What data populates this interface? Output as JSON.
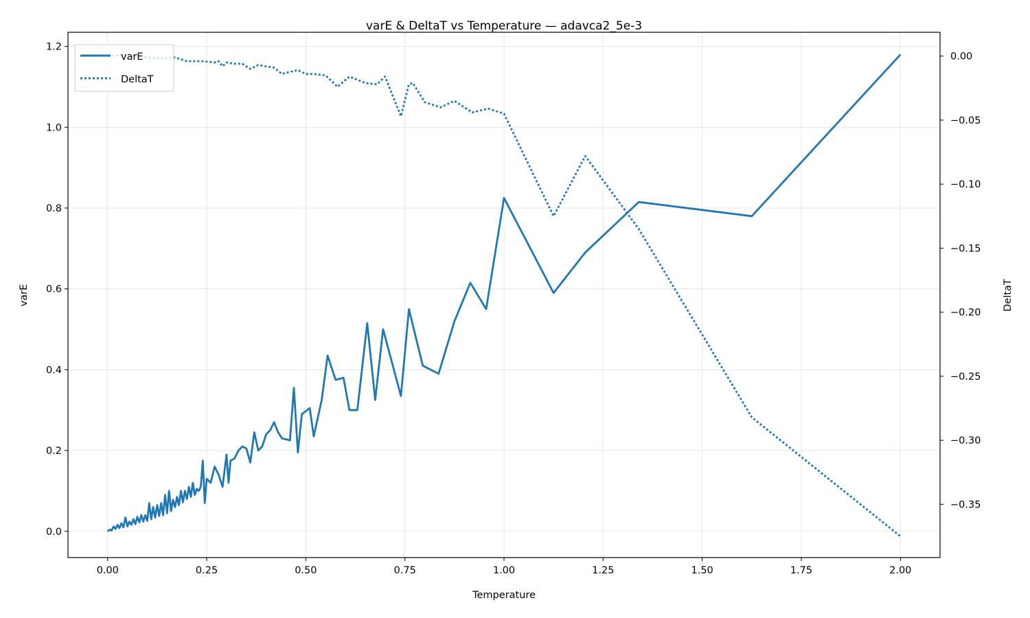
{
  "chart_data": {
    "type": "line",
    "title": "varE & DeltaT vs Temperature — adavca2_5e-3",
    "xlabel": "Temperature",
    "ylabel": "varE",
    "y2label": "DeltaT",
    "xlim": [
      -0.1,
      2.1
    ],
    "ylim": [
      -0.065,
      1.235
    ],
    "y2lim": [
      -0.3916,
      0.0186
    ],
    "xticks": [
      "0.00",
      "0.25",
      "0.50",
      "0.75",
      "1.00",
      "1.25",
      "1.50",
      "1.75",
      "2.00"
    ],
    "yticks": [
      "0.0",
      "0.2",
      "0.4",
      "0.6",
      "0.8",
      "1.0",
      "1.2"
    ],
    "y2ticks": [
      "0.00",
      "−0.05",
      "−0.10",
      "−0.15",
      "−0.20",
      "−0.25",
      "−0.30",
      "−0.35"
    ],
    "grid": true,
    "legend": {
      "position": "top-left",
      "entries": [
        "varE",
        "DeltaT"
      ]
    },
    "colors": {
      "line": "#1f77b4"
    },
    "series": [
      {
        "name": "varE",
        "axis": "left",
        "style": "solid",
        "x": [
          0.0,
          0.005,
          0.01,
          0.015,
          0.02,
          0.025,
          0.03,
          0.035,
          0.04,
          0.045,
          0.05,
          0.055,
          0.06,
          0.065,
          0.07,
          0.075,
          0.08,
          0.085,
          0.09,
          0.095,
          0.1,
          0.105,
          0.11,
          0.115,
          0.12,
          0.125,
          0.13,
          0.135,
          0.14,
          0.145,
          0.15,
          0.155,
          0.16,
          0.165,
          0.17,
          0.175,
          0.18,
          0.185,
          0.19,
          0.195,
          0.2,
          0.205,
          0.21,
          0.215,
          0.22,
          0.225,
          0.23,
          0.235,
          0.24,
          0.245,
          0.25,
          0.26,
          0.27,
          0.28,
          0.29,
          0.3,
          0.305,
          0.31,
          0.32,
          0.33,
          0.34,
          0.35,
          0.36,
          0.37,
          0.38,
          0.39,
          0.4,
          0.41,
          0.42,
          0.43,
          0.44,
          0.46,
          0.47,
          0.48,
          0.49,
          0.51,
          0.52,
          0.54,
          0.555,
          0.575,
          0.595,
          0.61,
          0.63,
          0.655,
          0.675,
          0.695,
          0.74,
          0.76,
          0.795,
          0.835,
          0.875,
          0.915,
          0.955,
          1.0,
          1.125,
          1.205,
          1.34,
          1.625,
          2.0
        ],
        "y": [
          0.0,
          0.004,
          0.002,
          0.012,
          0.006,
          0.016,
          0.008,
          0.02,
          0.01,
          0.034,
          0.012,
          0.024,
          0.016,
          0.03,
          0.018,
          0.036,
          0.022,
          0.04,
          0.024,
          0.04,
          0.026,
          0.07,
          0.03,
          0.06,
          0.034,
          0.065,
          0.038,
          0.07,
          0.04,
          0.09,
          0.045,
          0.1,
          0.05,
          0.078,
          0.06,
          0.085,
          0.065,
          0.1,
          0.072,
          0.1,
          0.08,
          0.11,
          0.085,
          0.12,
          0.09,
          0.105,
          0.1,
          0.11,
          0.175,
          0.07,
          0.13,
          0.12,
          0.16,
          0.14,
          0.11,
          0.19,
          0.12,
          0.175,
          0.18,
          0.2,
          0.21,
          0.205,
          0.17,
          0.245,
          0.2,
          0.21,
          0.24,
          0.25,
          0.27,
          0.245,
          0.23,
          0.225,
          0.355,
          0.195,
          0.29,
          0.305,
          0.235,
          0.325,
          0.435,
          0.375,
          0.38,
          0.3,
          0.3,
          0.515,
          0.325,
          0.5,
          0.335,
          0.55,
          0.41,
          0.39,
          0.52,
          0.615,
          0.55,
          0.825,
          0.59,
          0.69,
          0.815,
          0.78,
          1.18
        ]
      },
      {
        "name": "DeltaT",
        "axis": "right",
        "style": "dotted",
        "x": [
          0.0,
          0.05,
          0.1,
          0.14,
          0.17,
          0.2,
          0.24,
          0.27,
          0.28,
          0.29,
          0.3,
          0.32,
          0.34,
          0.36,
          0.38,
          0.4,
          0.42,
          0.44,
          0.45,
          0.48,
          0.5,
          0.52,
          0.55,
          0.58,
          0.61,
          0.65,
          0.68,
          0.7,
          0.74,
          0.76,
          0.77,
          0.8,
          0.84,
          0.875,
          0.92,
          0.96,
          1.0,
          1.125,
          1.205,
          1.34,
          1.625,
          2.0
        ],
        "y": [
          0.0,
          0.001,
          -0.001,
          -0.002,
          -0.001,
          -0.004,
          -0.004,
          -0.005,
          -0.004,
          -0.008,
          -0.005,
          -0.006,
          -0.006,
          -0.01,
          -0.007,
          -0.008,
          -0.009,
          -0.014,
          -0.013,
          -0.011,
          -0.014,
          -0.014,
          -0.015,
          -0.024,
          -0.016,
          -0.021,
          -0.022,
          -0.016,
          -0.047,
          -0.022,
          -0.021,
          -0.036,
          -0.04,
          -0.035,
          -0.044,
          -0.041,
          -0.045,
          -0.125,
          -0.078,
          -0.135,
          -0.282,
          -0.375
        ]
      }
    ]
  }
}
